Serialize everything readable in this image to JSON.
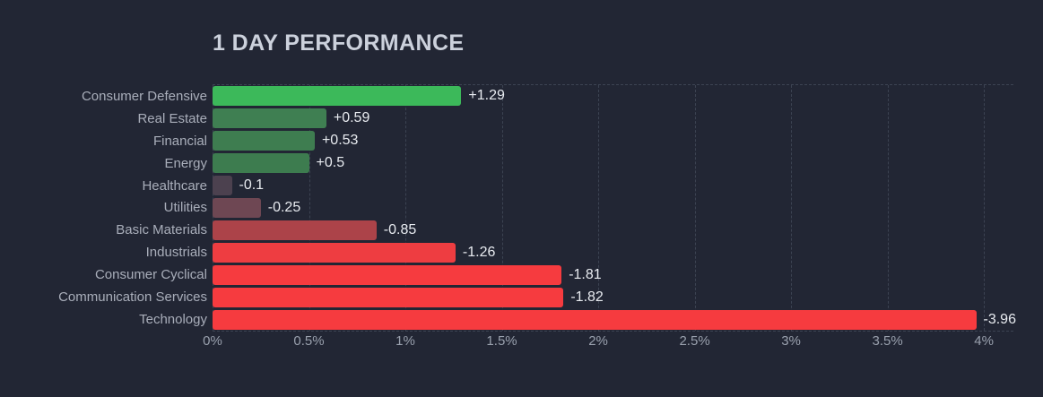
{
  "title": "1 DAY PERFORMANCE",
  "colors": {
    "background": "#222634",
    "title_text": "#ccd1dc",
    "category_text": "#a9aeba",
    "value_text": "#e8ebf0",
    "tick_text": "#99a0ad",
    "gridline": "#3c4352",
    "positive_strong": "#3cb95a",
    "positive_muted": "#3e7d50",
    "negative_weak": "#4c414f",
    "negative_strong": "#f63b3f"
  },
  "chart_data": {
    "type": "bar",
    "orientation": "horizontal",
    "title": "1 DAY PERFORMANCE",
    "xlabel": "",
    "ylabel": "",
    "units": "percent",
    "xlim": [
      0,
      4.153
    ],
    "grid": "dashed vertical gridlines at 0.5% steps, dashed top and bottom plot borders",
    "legend": "none",
    "x_ticks": [
      {
        "value": 0,
        "label": "0%"
      },
      {
        "value": 0.5,
        "label": "0.5%"
      },
      {
        "value": 1,
        "label": "1%"
      },
      {
        "value": 1.5,
        "label": "1.5%"
      },
      {
        "value": 2,
        "label": "2%"
      },
      {
        "value": 2.5,
        "label": "2.5%"
      },
      {
        "value": 3,
        "label": "3%"
      },
      {
        "value": 3.5,
        "label": "3.5%"
      },
      {
        "value": 4,
        "label": "4%"
      }
    ],
    "bars": [
      {
        "category": "Consumer Defensive",
        "value": 1.29,
        "label": "+1.29",
        "color": "#3cb95a"
      },
      {
        "category": "Real Estate",
        "value": 0.59,
        "label": "+0.59",
        "color": "#3f7f52"
      },
      {
        "category": "Financial",
        "value": 0.53,
        "label": "+0.53",
        "color": "#3e7d50"
      },
      {
        "category": "Energy",
        "value": 0.5,
        "label": "+0.5",
        "color": "#3d7c4f"
      },
      {
        "category": "Healthcare",
        "value": -0.1,
        "label": "-0.1",
        "color": "#4c414f"
      },
      {
        "category": "Utilities",
        "value": -0.25,
        "label": "-0.25",
        "color": "#6e4753"
      },
      {
        "category": "Basic Materials",
        "value": -0.85,
        "label": "-0.85",
        "color": "#ac4349"
      },
      {
        "category": "Industrials",
        "value": -1.26,
        "label": "-1.26",
        "color": "#ee3d41"
      },
      {
        "category": "Consumer Cyclical",
        "value": -1.81,
        "label": "-1.81",
        "color": "#f63b3f"
      },
      {
        "category": "Communication Services",
        "value": -1.82,
        "label": "-1.82",
        "color": "#f63b3f"
      },
      {
        "category": "Technology",
        "value": -3.96,
        "label": "-3.96",
        "color": "#f63b3f"
      }
    ]
  }
}
